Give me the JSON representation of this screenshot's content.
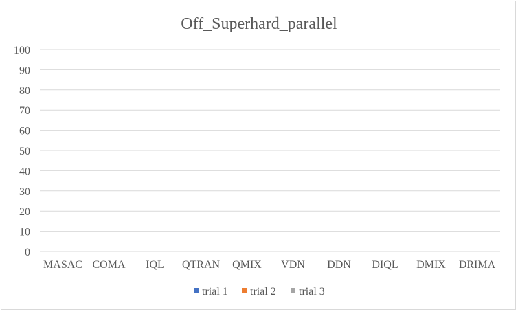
{
  "chart_data": {
    "type": "bar",
    "title": "Off_Superhard_parallel",
    "xlabel": "",
    "ylabel": "",
    "categories": [
      "MASAC",
      "COMA",
      "IQL",
      "QTRAN",
      "QMIX",
      "VDN",
      "DDN",
      "DIQL",
      "DMIX",
      "DRIMA"
    ],
    "series": [
      {
        "name": "trial 1",
        "color": "#4472c4",
        "values": [
          0,
          0,
          0,
          0,
          0,
          0,
          0,
          0,
          0,
          0
        ]
      },
      {
        "name": "trial 2",
        "color": "#ed7d31",
        "values": [
          0,
          0,
          0,
          0,
          0,
          0,
          0,
          0,
          0,
          0
        ]
      },
      {
        "name": "trial 3",
        "color": "#a5a5a5",
        "values": [
          0,
          0,
          0,
          0,
          0,
          0,
          0,
          0,
          0,
          0
        ]
      }
    ],
    "ylim": [
      0,
      100
    ],
    "yticks": [
      0,
      10,
      20,
      30,
      40,
      50,
      60,
      70,
      80,
      90,
      100
    ],
    "grid": true,
    "legend_position": "bottom"
  }
}
